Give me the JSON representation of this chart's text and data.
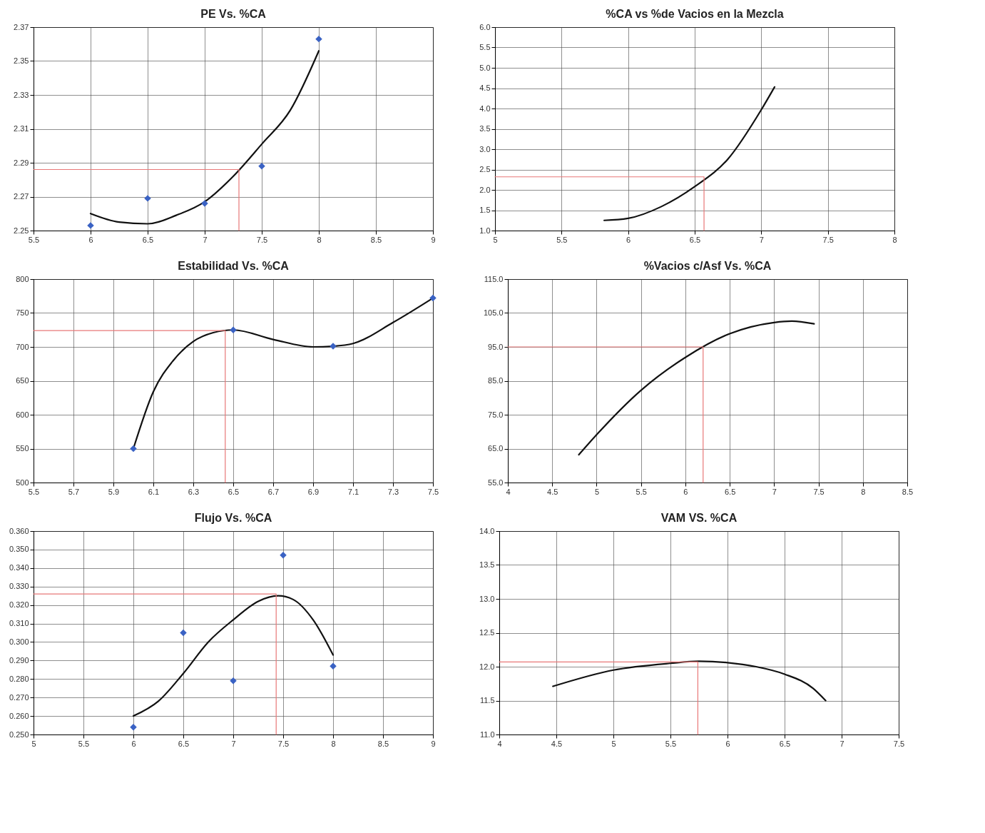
{
  "chart_data": [
    {
      "type": "scatter",
      "title": "PE Vs. %CA",
      "xlim": [
        5.5,
        9
      ],
      "xticks": [
        5.5,
        6,
        6.5,
        7,
        7.5,
        8,
        8.5,
        9
      ],
      "ylim": [
        2.25,
        2.37
      ],
      "yticks": [
        2.25,
        2.27,
        2.29,
        2.31,
        2.33,
        2.35,
        2.37
      ],
      "grid": true,
      "series": [
        {
          "marker": "diamond",
          "color": "#3a62c4",
          "x": [
            6,
            6.5,
            7,
            7.5,
            8
          ],
          "values": [
            2.253,
            2.269,
            2.266,
            2.288,
            2.363
          ]
        },
        {
          "type": "line",
          "color": "#111111",
          "x": [
            6,
            6.25,
            6.5,
            6.75,
            7,
            7.25,
            7.5,
            7.75,
            8
          ],
          "values": [
            2.26,
            2.255,
            2.254,
            2.259,
            2.267,
            2.282,
            2.301,
            2.321,
            2.356
          ]
        },
        {
          "type": "line",
          "color": "#e87878",
          "x": [
            5.5,
            7.3,
            7.3
          ],
          "values": [
            2.286,
            2.286,
            2.25
          ]
        }
      ]
    },
    {
      "type": "line",
      "title": "%CA  vs %de  Vacios en la Mezcla",
      "xlim": [
        5,
        8
      ],
      "xticks": [
        5,
        5.5,
        6,
        6.5,
        7,
        7.5,
        8
      ],
      "ylim": [
        1,
        6
      ],
      "yticks": [
        {
          "value": 1,
          "label": "1.0"
        },
        {
          "value": 1.5,
          "label": "1.5"
        },
        {
          "value": 2,
          "label": "2.0"
        },
        {
          "value": 2.5,
          "label": "2.5"
        },
        {
          "value": 3,
          "label": "3.0"
        },
        {
          "value": 3.5,
          "label": "3.5"
        },
        {
          "value": 4,
          "label": "4.0"
        },
        {
          "value": 4.5,
          "label": "4.5"
        },
        {
          "value": 5,
          "label": "5.0"
        },
        {
          "value": 5.5,
          "label": "5.5"
        },
        {
          "value": 6,
          "label": "6.0"
        }
      ],
      "grid": true,
      "series": [
        {
          "color": "#111111",
          "x": [
            5.82,
            6,
            6.25,
            6.5,
            6.75,
            7,
            7.1
          ],
          "values": [
            1.25,
            1.3,
            1.59,
            2.08,
            2.76,
            3.97,
            4.53
          ]
        },
        {
          "color": "#e87878",
          "x": [
            5,
            6.57,
            6.57
          ],
          "values": [
            2.32,
            2.32,
            1
          ]
        }
      ]
    },
    {
      "type": "scatter",
      "title": "Estabilidad Vs. %CA",
      "xlim": [
        5.5,
        7.5
      ],
      "xticks": [
        5.5,
        5.7,
        5.9,
        6.1,
        6.3,
        6.5,
        6.7,
        6.9,
        7.1,
        7.3,
        7.5
      ],
      "ylim": [
        500,
        800
      ],
      "yticks": [
        500,
        550,
        600,
        650,
        700,
        750,
        800
      ],
      "grid": true,
      "series": [
        {
          "marker": "diamond",
          "color": "#3a62c4",
          "x": [
            6,
            6.5,
            7,
            7.5
          ],
          "values": [
            550,
            725,
            701,
            772
          ]
        },
        {
          "type": "line",
          "color": "#111111",
          "x": [
            6,
            6.1,
            6.2,
            6.3,
            6.4,
            6.5,
            6.7,
            6.9,
            7,
            7.1,
            7.3,
            7.5
          ],
          "values": [
            550,
            634,
            680,
            708,
            721,
            725,
            711,
            700,
            701,
            705,
            736,
            772
          ]
        },
        {
          "type": "line",
          "color": "#e87878",
          "x": [
            5.5,
            6.46,
            6.46
          ],
          "values": [
            724,
            724,
            500
          ]
        }
      ]
    },
    {
      "type": "line",
      "title": "%Vacios  c/Asf Vs. %CA",
      "xlim": [
        4,
        8.5
      ],
      "xticks": [
        4,
        4.5,
        5,
        5.5,
        6,
        6.5,
        7,
        7.5,
        8,
        8.5
      ],
      "ylim": [
        55,
        115
      ],
      "yticks": [
        {
          "value": 55,
          "label": "55.0"
        },
        {
          "value": 65,
          "label": "65.0"
        },
        {
          "value": 75,
          "label": "75.0"
        },
        {
          "value": 85,
          "label": "85.0"
        },
        {
          "value": 95,
          "label": "95.0"
        },
        {
          "value": 105,
          "label": "105.0"
        },
        {
          "value": 115,
          "label": "115.0"
        }
      ],
      "grid": true,
      "series": [
        {
          "color": "#111111",
          "x": [
            4.8,
            5,
            5.5,
            6,
            6.5,
            7,
            7.2,
            7.45
          ],
          "values": [
            63.2,
            69.1,
            82.2,
            91.9,
            98.9,
            102.2,
            102.6,
            101.8
          ]
        },
        {
          "color": "#e87878",
          "x": [
            4,
            6.2,
            6.2
          ],
          "values": [
            95,
            95,
            55
          ]
        }
      ]
    },
    {
      "type": "scatter",
      "title": "Flujo Vs. %CA",
      "xlim": [
        5,
        9
      ],
      "xticks": [
        5,
        5.5,
        6,
        6.5,
        7,
        7.5,
        8,
        8.5,
        9
      ],
      "ylim": [
        0.25,
        0.36
      ],
      "yticks": [
        {
          "value": 0.25,
          "label": "0.250"
        },
        {
          "value": 0.26,
          "label": "0.260"
        },
        {
          "value": 0.27,
          "label": "0.270"
        },
        {
          "value": 0.28,
          "label": "0.280"
        },
        {
          "value": 0.29,
          "label": "0.290"
        },
        {
          "value": 0.3,
          "label": "0.300"
        },
        {
          "value": 0.31,
          "label": "0.310"
        },
        {
          "value": 0.32,
          "label": "0.320"
        },
        {
          "value": 0.33,
          "label": "0.330"
        },
        {
          "value": 0.34,
          "label": "0.340"
        },
        {
          "value": 0.35,
          "label": "0.350"
        },
        {
          "value": 0.36,
          "label": "0.360"
        }
      ],
      "grid": true,
      "series": [
        {
          "marker": "diamond",
          "color": "#3a62c4",
          "x": [
            6,
            6.5,
            7,
            7.5,
            8
          ],
          "values": [
            0.254,
            0.305,
            0.279,
            0.347,
            0.287
          ]
        },
        {
          "type": "line",
          "color": "#111111",
          "x": [
            6,
            6.25,
            6.5,
            6.75,
            7,
            7.25,
            7.45,
            7.6,
            7.8,
            8
          ],
          "values": [
            0.26,
            0.268,
            0.283,
            0.3,
            0.312,
            0.322,
            0.325,
            0.323,
            0.312,
            0.293
          ]
        },
        {
          "type": "line",
          "color": "#e87878",
          "x": [
            5,
            7.43,
            7.43
          ],
          "values": [
            0.326,
            0.326,
            0.25
          ]
        }
      ]
    },
    {
      "type": "line",
      "title": "VAM VS. %CA",
      "xlim": [
        4,
        7.5
      ],
      "xticks": [
        4,
        4.5,
        5,
        5.5,
        6,
        6.5,
        7,
        7.5
      ],
      "ylim": [
        11,
        14
      ],
      "yticks": [
        {
          "value": 11,
          "label": "11.0"
        },
        {
          "value": 11.5,
          "label": "11.5"
        },
        {
          "value": 12,
          "label": "12.0"
        },
        {
          "value": 12.5,
          "label": "12.5"
        },
        {
          "value": 13,
          "label": "13.0"
        },
        {
          "value": 13.5,
          "label": "13.5"
        },
        {
          "value": 14,
          "label": "14.0"
        }
      ],
      "grid": true,
      "series": [
        {
          "color": "#111111",
          "x": [
            4.47,
            5,
            5.5,
            5.75,
            6,
            6.25,
            6.5,
            6.75,
            6.86
          ],
          "values": [
            11.71,
            11.95,
            12.05,
            12.08,
            12.06,
            12,
            11.89,
            11.68,
            11.5
          ]
        },
        {
          "color": "#e87878",
          "x": [
            4,
            5.74,
            5.74
          ],
          "values": [
            12.07,
            12.07,
            11
          ]
        }
      ]
    }
  ]
}
